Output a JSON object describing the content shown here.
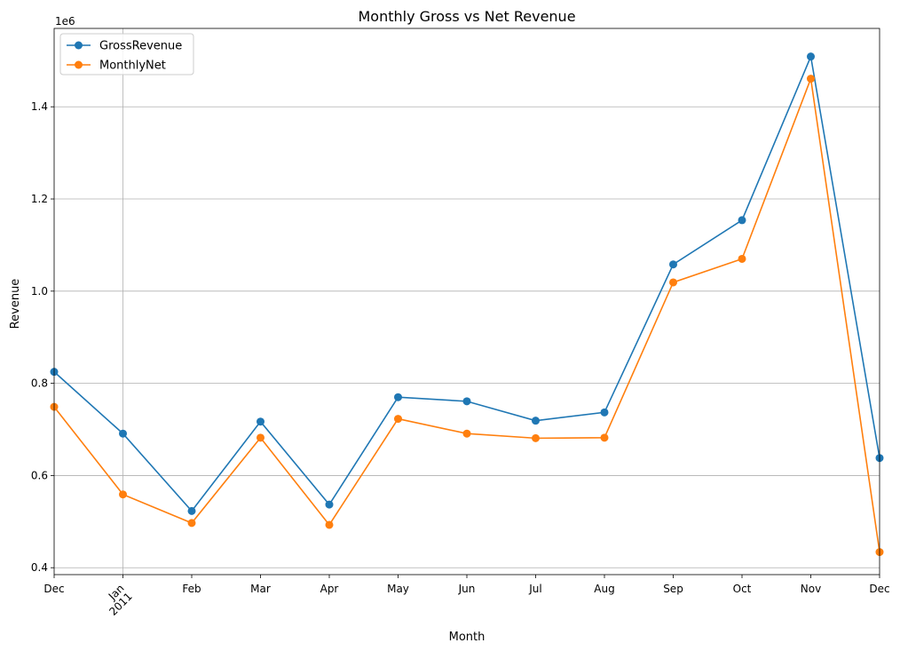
{
  "chart_data": {
    "type": "line",
    "title": "Monthly Gross vs Net Revenue",
    "xlabel": "Month",
    "ylabel": "Revenue",
    "y_multiplier_label": "1e6",
    "categories": [
      "Dec",
      "Jan\n2011",
      "Feb",
      "Mar",
      "Apr",
      "May",
      "Jun",
      "Jul",
      "Aug",
      "Sep",
      "Oct",
      "Nov",
      "Dec"
    ],
    "x": [
      "2010-12",
      "2011-01",
      "2011-02",
      "2011-03",
      "2011-04",
      "2011-05",
      "2011-06",
      "2011-07",
      "2011-08",
      "2011-09",
      "2011-10",
      "2011-11",
      "2011-12"
    ],
    "series": [
      {
        "name": "GrossRevenue",
        "color": "#1f77b4",
        "values": [
          825000,
          691000,
          523000,
          717000,
          537000,
          770000,
          761000,
          719000,
          737000,
          1058000,
          1154000,
          1509000,
          638000
        ]
      },
      {
        "name": "MonthlyNet",
        "color": "#ff7f0e",
        "values": [
          749000,
          559000,
          497000,
          682000,
          493000,
          723000,
          691000,
          681000,
          682000,
          1019000,
          1070000,
          1461000,
          434000
        ]
      }
    ],
    "ylim": [
      385000,
      1570000
    ],
    "yticks": [
      0.4,
      0.6,
      0.8,
      1.0,
      1.2,
      1.4
    ],
    "ytick_labels": [
      "0.4",
      "0.6",
      "0.8",
      "1.0",
      "1.2",
      "1.4"
    ],
    "grid": true,
    "legend_position": "top-left"
  }
}
